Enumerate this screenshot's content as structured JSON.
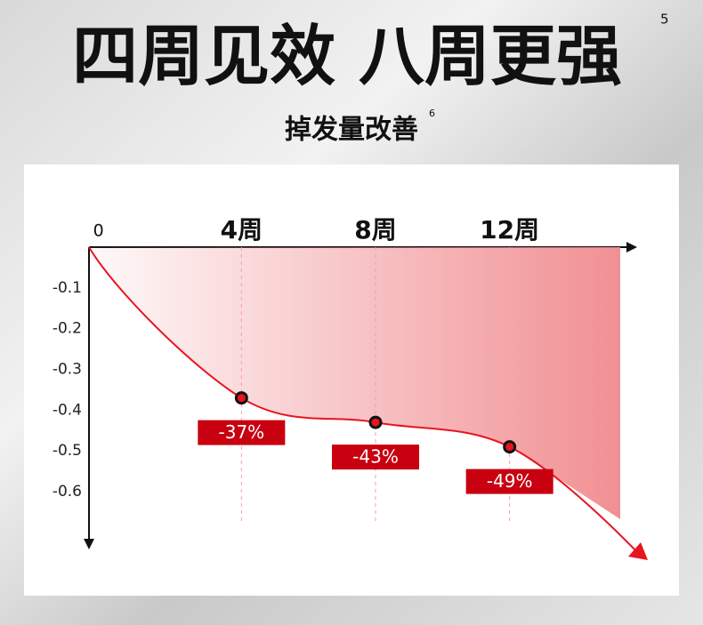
{
  "chart_data": {
    "type": "line",
    "title": "四周见效 八周更强",
    "title_note": "5",
    "subtitle": "掉发量改善",
    "subtitle_note": "6",
    "xlim": [
      -0.55,
      15.7
    ],
    "xticks": [
      0,
      {
        "value": 4,
        "label": "4周"
      },
      {
        "value": 8,
        "label": "8周"
      },
      {
        "value": 12,
        "label": "12周"
      }
    ],
    "ylim": [
      0,
      -0.72
    ],
    "yticks": [
      -0.1,
      -0.2,
      -0.3,
      -0.4,
      -0.5,
      -0.6
    ],
    "series": [
      {
        "x": [
          4,
          8,
          12
        ],
        "values": [
          -0.37,
          -0.43,
          -0.49
        ],
        "value_labels": [
          "-37%",
          "-43%",
          "-49%"
        ],
        "color": "#e8141e"
      }
    ]
  }
}
